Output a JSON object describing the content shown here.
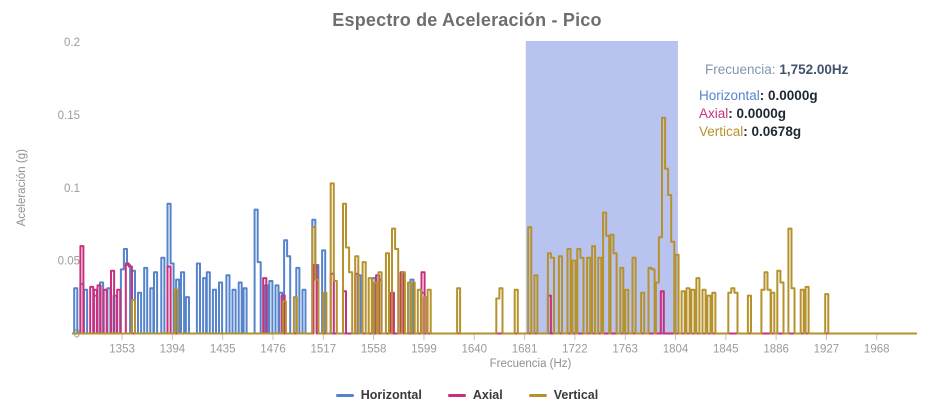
{
  "title": "Espectro de Aceleración - Pico",
  "colors": {
    "horizontal": "#5584cc",
    "axial": "#ca2f7c",
    "vertical": "#b6922d",
    "selection": "#b9c3f0",
    "tick_line": "#b8c0ea",
    "tick_text": "#9b9b9b",
    "axis_title": "#8f8f8f"
  },
  "tooltip": {
    "freq_label": "Frecuencia:",
    "freq_value": "1,752.00Hz",
    "rows": [
      {
        "label": "Horizontal",
        "value": "0.0000g"
      },
      {
        "label": "Axial",
        "value": "0.0000g"
      },
      {
        "label": "Vertical",
        "value": "0.0678g"
      }
    ]
  },
  "chart_data": {
    "type": "line",
    "subtype": "step-spectrum",
    "title": "Espectro de Aceleración - Pico",
    "xlabel": "Frecuencia (Hz)",
    "ylabel": "Aceleración (g)",
    "xlim": [
      1313,
      2000
    ],
    "ylim": [
      0,
      0.2
    ],
    "x_ticks": [
      1353,
      1394,
      1435,
      1476,
      1517,
      1558,
      1599,
      1640,
      1681,
      1722,
      1763,
      1804,
      1845,
      1886,
      1927,
      1968
    ],
    "y_ticks": [
      0,
      0.05,
      0.1,
      0.15,
      0.2
    ],
    "y_tick_labels": [
      "0",
      "0.05",
      "0.1",
      "0.15",
      "0.2"
    ],
    "grid": false,
    "legend_position": "bottom-center",
    "selection": {
      "x0": 1682,
      "x1": 1806,
      "note": "highlighted frequency band"
    },
    "hover_point": {
      "frequency_hz": 1752.0,
      "horizontal_g": 0.0,
      "axial_g": 0.0,
      "vertical_g": 0.0678
    },
    "series": [
      {
        "name": "Horizontal",
        "color": "#5584cc",
        "segments": [
          [
            1314,
            1316.5,
            0.031
          ],
          [
            1319,
            1321.5,
            0.034
          ],
          [
            1322,
            1324.5,
            0.03
          ],
          [
            1330,
            1332.5,
            0.026
          ],
          [
            1335,
            1337.5,
            0.035
          ],
          [
            1341,
            1343.5,
            0.031
          ],
          [
            1346,
            1348.5,
            0.026
          ],
          [
            1352,
            1354.5,
            0.044
          ],
          [
            1354.5,
            1357,
            0.058
          ],
          [
            1357,
            1359.5,
            0.047
          ],
          [
            1361,
            1363.5,
            0.043
          ],
          [
            1366,
            1368.5,
            0.028
          ],
          [
            1371,
            1373.5,
            0.045
          ],
          [
            1376,
            1378.5,
            0.031
          ],
          [
            1379,
            1381.5,
            0.042
          ],
          [
            1385,
            1387.5,
            0.052
          ],
          [
            1390,
            1392.5,
            0.089
          ],
          [
            1392.5,
            1395,
            0.048
          ],
          [
            1397,
            1399.5,
            0.037
          ],
          [
            1401,
            1403.5,
            0.042
          ],
          [
            1405,
            1407.5,
            0.025
          ],
          [
            1414,
            1416.5,
            0.048
          ],
          [
            1419,
            1421.5,
            0.038
          ],
          [
            1422,
            1424.5,
            0.042
          ],
          [
            1427,
            1429.5,
            0.03
          ],
          [
            1432,
            1434.5,
            0.035
          ],
          [
            1438,
            1440.5,
            0.04
          ],
          [
            1443,
            1445.5,
            0.03
          ],
          [
            1448,
            1450.5,
            0.035
          ],
          [
            1452,
            1454.5,
            0.031
          ],
          [
            1461,
            1463.5,
            0.085
          ],
          [
            1463.5,
            1466,
            0.049
          ],
          [
            1469,
            1471.5,
            0.033
          ],
          [
            1473,
            1475.5,
            0.036
          ],
          [
            1478,
            1480.5,
            0.033
          ],
          [
            1481,
            1483.5,
            0.028
          ],
          [
            1485,
            1487.5,
            0.064
          ],
          [
            1487.5,
            1490,
            0.053
          ],
          [
            1495,
            1497.5,
            0.045
          ],
          [
            1500,
            1502.5,
            0.03
          ],
          [
            1508,
            1510.5,
            0.078
          ],
          [
            1510.5,
            1513,
            0.047
          ],
          [
            1516,
            1518.5,
            0.057
          ],
          [
            1545,
            1547.5,
            0.04
          ],
          [
            1557,
            1559.5,
            0.038
          ],
          [
            1562,
            1564.5,
            0.037
          ],
          [
            1580,
            1582.5,
            0.04
          ],
          [
            1588,
            1590.5,
            0.037
          ],
          [
            1597,
            1599.5,
            0.028
          ]
        ]
      },
      {
        "name": "Axial",
        "color": "#ca2f7c",
        "segments": [
          [
            1319,
            1321.5,
            0.06
          ],
          [
            1327,
            1329.5,
            0.032
          ],
          [
            1330,
            1332.5,
            0.03
          ],
          [
            1333,
            1335.5,
            0.033
          ],
          [
            1338,
            1340.5,
            0.03
          ],
          [
            1344,
            1346.5,
            0.043
          ],
          [
            1349,
            1351.5,
            0.03
          ],
          [
            1356,
            1358.5,
            0.048
          ],
          [
            1358.5,
            1361,
            0.046
          ],
          [
            1390,
            1392.5,
            0.046
          ],
          [
            1468,
            1470.5,
            0.038
          ],
          [
            1483,
            1485.5,
            0.026
          ],
          [
            1509,
            1511.5,
            0.047
          ],
          [
            1523,
            1525.5,
            0.041
          ],
          [
            1533,
            1535.5,
            0.029
          ],
          [
            1543,
            1545.5,
            0.041
          ],
          [
            1560,
            1562.5,
            0.04
          ],
          [
            1572,
            1574.5,
            0.028
          ],
          [
            1580,
            1582.5,
            0.042
          ],
          [
            1597,
            1599.5,
            0.042
          ],
          [
            1700,
            1702.5,
            0.026
          ],
          [
            1792,
            1794.5,
            0.029
          ]
        ]
      },
      {
        "name": "Vertical",
        "color": "#b6922d",
        "segments": [
          [
            1361,
            1363.5,
            0.023
          ],
          [
            1396,
            1398.5,
            0.03
          ],
          [
            1484,
            1486.5,
            0.022
          ],
          [
            1493,
            1495.5,
            0.025
          ],
          [
            1508,
            1510.5,
            0.073
          ],
          [
            1510.5,
            1513,
            0.037
          ],
          [
            1517,
            1519.5,
            0.028
          ],
          [
            1523,
            1525.5,
            0.103
          ],
          [
            1525.5,
            1528,
            0.036
          ],
          [
            1533,
            1535.5,
            0.089
          ],
          [
            1535.5,
            1538,
            0.059
          ],
          [
            1538,
            1540.5,
            0.042
          ],
          [
            1543,
            1545.5,
            0.053
          ],
          [
            1549,
            1551.5,
            0.049
          ],
          [
            1554,
            1556.5,
            0.038
          ],
          [
            1558,
            1560.5,
            0.035
          ],
          [
            1562,
            1564.5,
            0.042
          ],
          [
            1568,
            1570.5,
            0.055
          ],
          [
            1573,
            1575.5,
            0.072
          ],
          [
            1575.5,
            1578,
            0.058
          ],
          [
            1581,
            1583.5,
            0.042
          ],
          [
            1586,
            1588.5,
            0.035
          ],
          [
            1589,
            1591.5,
            0.035
          ],
          [
            1594,
            1596.5,
            0.03
          ],
          [
            1599,
            1601.5,
            0.025
          ],
          [
            1602,
            1604.5,
            0.03
          ],
          [
            1626,
            1628.5,
            0.031
          ],
          [
            1658,
            1660.5,
            0.024
          ],
          [
            1660.5,
            1663,
            0.031
          ],
          [
            1673,
            1675.5,
            0.03
          ],
          [
            1684,
            1686.5,
            0.073
          ],
          [
            1689,
            1691.5,
            0.04
          ],
          [
            1700,
            1702.5,
            0.055
          ],
          [
            1702.5,
            1705,
            0.052
          ],
          [
            1709,
            1711.5,
            0.053
          ],
          [
            1716,
            1718.5,
            0.058
          ],
          [
            1720,
            1722.5,
            0.05
          ],
          [
            1724,
            1726.5,
            0.058
          ],
          [
            1726.5,
            1729,
            0.052
          ],
          [
            1732,
            1734.5,
            0.052
          ],
          [
            1736,
            1738.5,
            0.06
          ],
          [
            1741,
            1743.5,
            0.052
          ],
          [
            1745,
            1747.5,
            0.083
          ],
          [
            1747.5,
            1750,
            0.067
          ],
          [
            1751,
            1753.5,
            0.0678
          ],
          [
            1753.5,
            1756,
            0.055
          ],
          [
            1759,
            1761.5,
            0.045
          ],
          [
            1763,
            1765.5,
            0.03
          ],
          [
            1769,
            1771.5,
            0.052
          ],
          [
            1776,
            1778.5,
            0.028
          ],
          [
            1782,
            1784.5,
            0.045
          ],
          [
            1784.5,
            1787,
            0.044
          ],
          [
            1788,
            1790.5,
            0.035
          ],
          [
            1790.5,
            1793,
            0.066
          ],
          [
            1793,
            1795.5,
            0.148
          ],
          [
            1795.5,
            1798,
            0.113
          ],
          [
            1798,
            1800.5,
            0.095
          ],
          [
            1800.5,
            1803,
            0.063
          ],
          [
            1804,
            1806.5,
            0.054
          ],
          [
            1809,
            1811.5,
            0.029
          ],
          [
            1813,
            1815.5,
            0.031
          ],
          [
            1817,
            1819.5,
            0.03
          ],
          [
            1821,
            1823.5,
            0.038
          ],
          [
            1826,
            1828.5,
            0.03
          ],
          [
            1830,
            1832.5,
            0.026
          ],
          [
            1834,
            1836.5,
            0.028
          ],
          [
            1847,
            1849.5,
            0.028
          ],
          [
            1849.5,
            1852,
            0.031
          ],
          [
            1852,
            1854.5,
            0.028
          ],
          [
            1863,
            1865.5,
            0.026
          ],
          [
            1874,
            1876.5,
            0.03
          ],
          [
            1876.5,
            1879,
            0.042
          ],
          [
            1879,
            1881.5,
            0.03
          ],
          [
            1882,
            1884.5,
            0.028
          ],
          [
            1887,
            1889.5,
            0.043
          ],
          [
            1889.5,
            1892,
            0.035
          ],
          [
            1896,
            1898.5,
            0.072
          ],
          [
            1898.5,
            1901,
            0.031
          ],
          [
            1906,
            1908.5,
            0.03
          ],
          [
            1910,
            1912.5,
            0.032
          ],
          [
            1926,
            1928.5,
            0.027
          ]
        ]
      }
    ]
  }
}
